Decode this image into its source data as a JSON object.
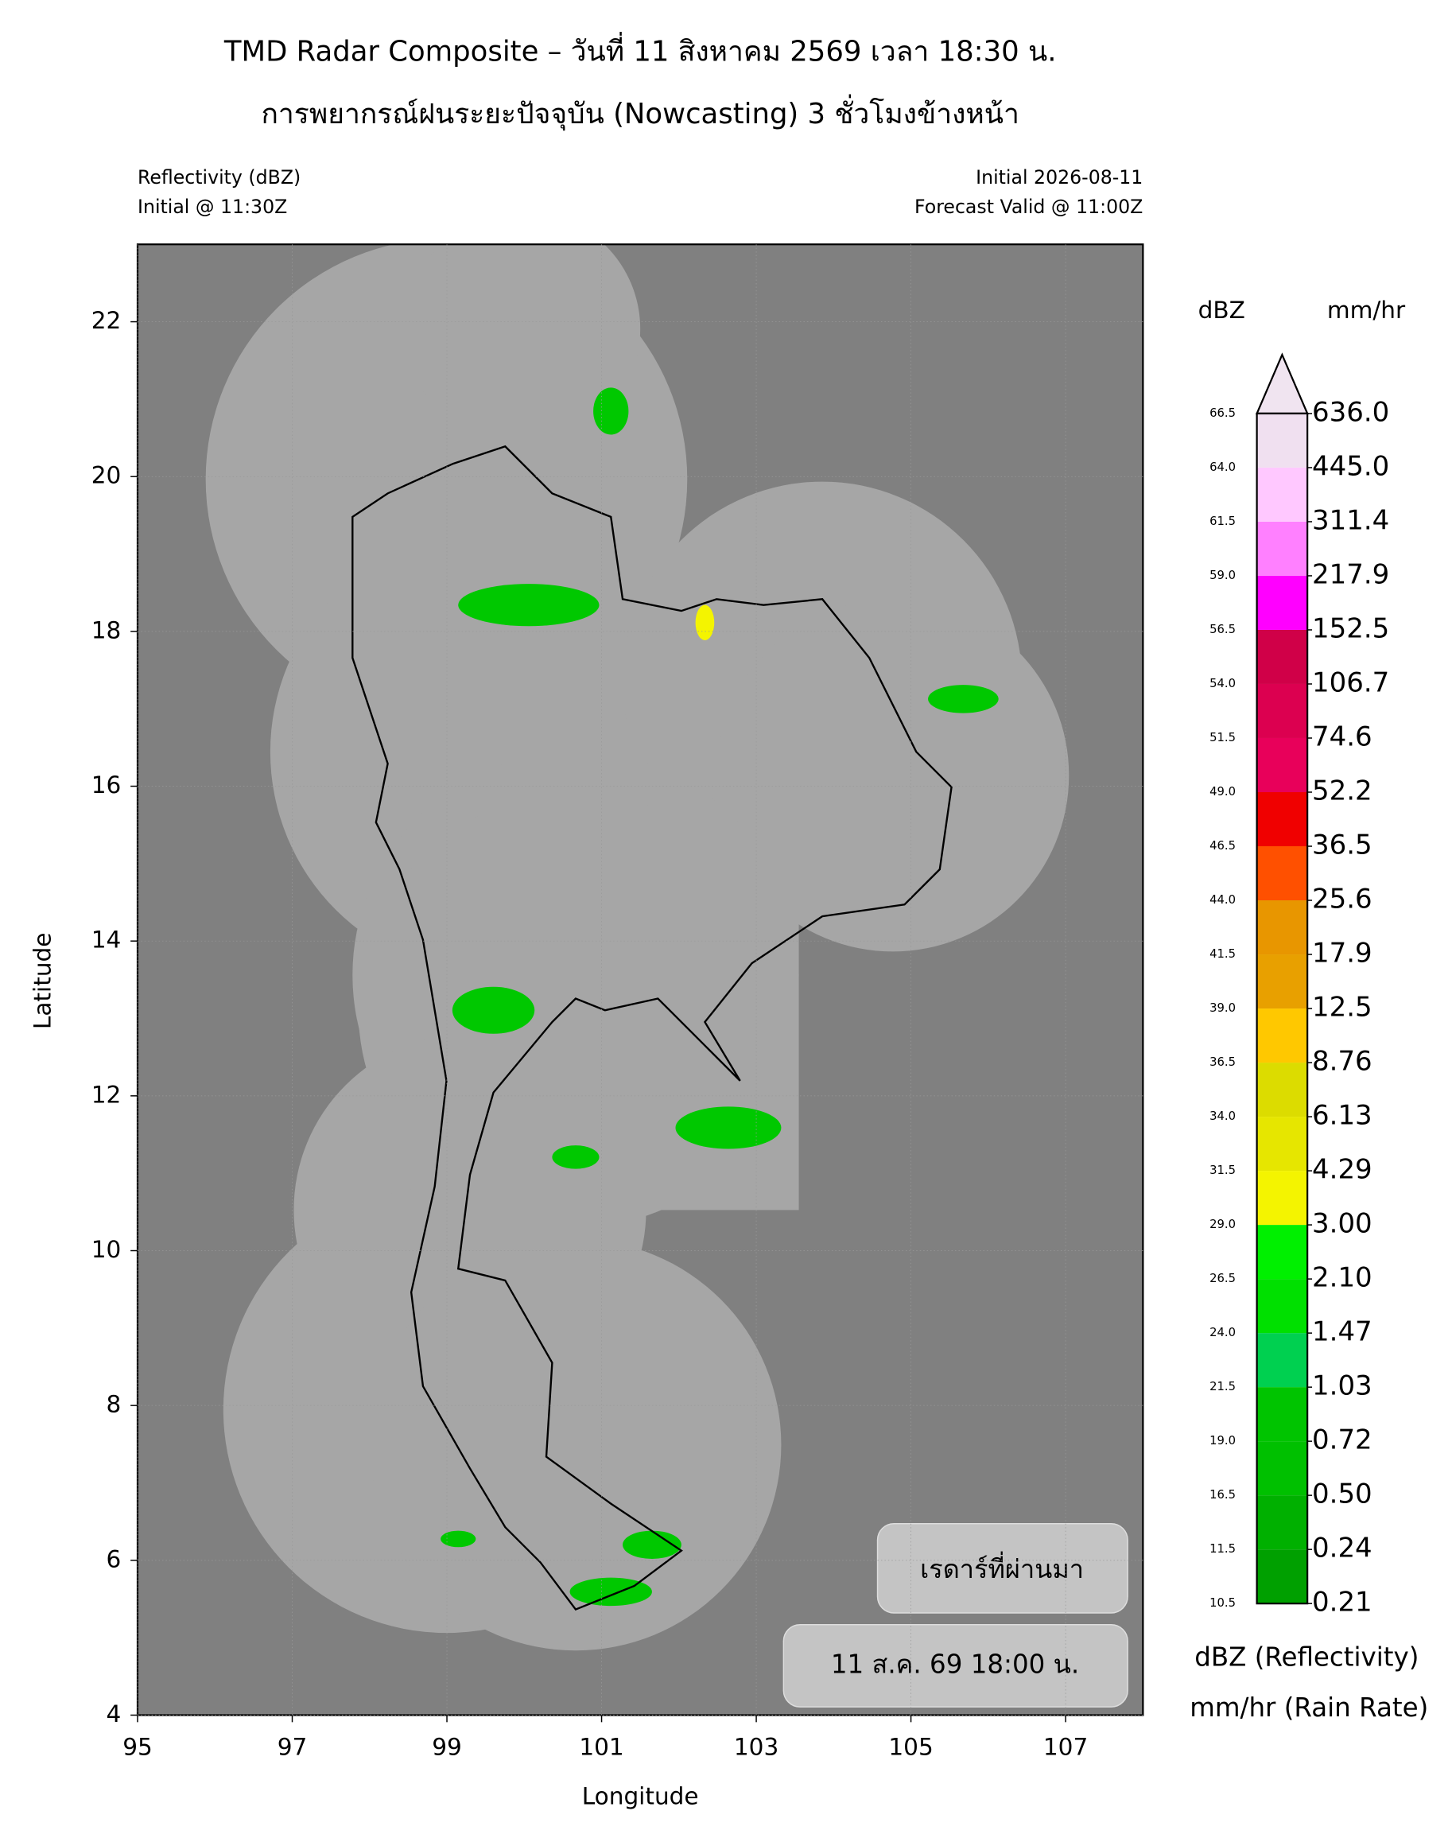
{
  "header": {
    "title_line1": "TMD Radar Composite – วันที่ 11 สิงหาคม 2569 เวลา 18:30 น.",
    "title_line2": "การพยากรณ์ฝนระยะปัจจุบัน (Nowcasting) 3 ชั่วโมงข้างหน้า",
    "left_line1": "Reflectivity (dBZ)",
    "left_line2": "Initial @ 11:30Z",
    "right_line1": "Initial 2026-08-11",
    "right_line2": "Forecast Valid @ 11:00Z"
  },
  "map": {
    "xlabel": "Longitude",
    "ylabel": "Latitude",
    "xlim": [
      95,
      108
    ],
    "ylim": [
      4,
      23
    ],
    "xticks": [
      95,
      97,
      99,
      101,
      103,
      105,
      107
    ],
    "yticks": [
      4,
      6,
      8,
      10,
      12,
      14,
      16,
      18,
      20,
      22
    ],
    "background": "#808080",
    "coverage_color": "#a6a6a6",
    "box_past": "เรดาร์ที่ผ่านมา",
    "box_time": "11 ส.ค. 69 18:00 น."
  },
  "colorbar": {
    "dbz_title": "dBZ",
    "rate_title": "mm/hr",
    "dbz_levels": [
      "10.5",
      "11.5",
      "16.5",
      "19.0",
      "21.5",
      "24.0",
      "26.5",
      "29.0",
      "31.5",
      "34.0",
      "36.5",
      "39.0",
      "41.5",
      "44.0",
      "46.5",
      "49.0",
      "51.5",
      "54.0",
      "56.5",
      "59.0",
      "61.5",
      "64.0",
      "66.5"
    ],
    "rain_rates": [
      "0.21",
      "0.24",
      "0.50",
      "0.72",
      "1.03",
      "1.47",
      "2.10",
      "3.00",
      "4.29",
      "6.13",
      "8.76",
      "12.5",
      "17.9",
      "25.6",
      "36.5",
      "52.2",
      "74.6",
      "106.7",
      "152.5",
      "217.9",
      "311.4",
      "445.0",
      "636.0"
    ],
    "colors": [
      "#00a000",
      "#00b000",
      "#00c000",
      "#00c400",
      "#00d050",
      "#00e000",
      "#00f000",
      "#f4f400",
      "#e6e600",
      "#dcdc00",
      "#ffc800",
      "#e8a000",
      "#e89600",
      "#ff5000",
      "#f00000",
      "#e8005a",
      "#dc0050",
      "#d00048",
      "#ff00ff",
      "#ff80ff",
      "#ffc8ff",
      "#f0e0f0"
    ],
    "extend_color": "#f0e4f0",
    "legend_dbz": "dBZ (Reflectivity)",
    "legend_rate": "mm/hr (Rain Rate)"
  }
}
